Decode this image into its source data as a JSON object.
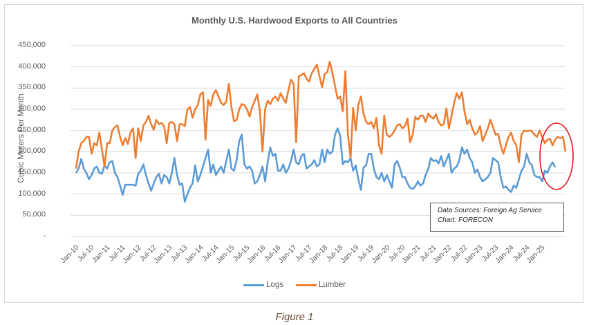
{
  "figure_caption": "Figure 1",
  "chart_data": {
    "type": "line",
    "title": "Monthly U.S. Hardwood Exports to All Countries",
    "xlabel": "",
    "ylabel": "Cubic Meters Per Month",
    "ylim": [
      0,
      450000
    ],
    "yticks": [
      0,
      50000,
      100000,
      150000,
      200000,
      250000,
      300000,
      350000,
      400000,
      450000
    ],
    "ytick_labels": [
      "-",
      "50,000",
      "100,000",
      "150,000",
      "200,000",
      "250,000",
      "300,000",
      "350,000",
      "400,000",
      "450,000"
    ],
    "grid": true,
    "legend_position": "bottom",
    "x_start": "Jan-10",
    "x_end": "Apr-25",
    "frequency": "monthly",
    "xtick_labels": [
      "Jan-10",
      "Jul-10",
      "Jan-11",
      "Jul-11",
      "Jan-12",
      "Jul-12",
      "Jan-13",
      "Jul-13",
      "Jan-14",
      "Jul-14",
      "Jan-15",
      "Jul-15",
      "Jan-16",
      "Jul-16",
      "Jan-17",
      "Jul-17",
      "Jan-18",
      "Jul-18",
      "Jan-19",
      "Jul-19",
      "Jan-20",
      "Jul-20",
      "Jan-21",
      "Jul-21",
      "Jan-22",
      "Jul-22",
      "Jan-23",
      "Jul-23",
      "Jan-24",
      "Jul-24",
      "Jan-25"
    ],
    "annotation": {
      "text_lines": [
        "Data Sources: Foreign Ag Service",
        "Chart: FORECON"
      ],
      "highlight": "red ellipse around most recent months (2025)"
    },
    "series": [
      {
        "name": "Logs",
        "color": "#5b9bd5",
        "values": [
          150000,
          160000,
          183000,
          160000,
          150000,
          135000,
          145000,
          160000,
          165000,
          150000,
          148000,
          168000,
          160000,
          175000,
          178000,
          150000,
          140000,
          120000,
          98000,
          122000,
          122000,
          122000,
          122000,
          120000,
          148000,
          155000,
          170000,
          145000,
          125000,
          108000,
          125000,
          140000,
          148000,
          125000,
          145000,
          140000,
          125000,
          150000,
          185000,
          145000,
          122000,
          125000,
          82000,
          100000,
          115000,
          125000,
          168000,
          130000,
          145000,
          165000,
          185000,
          205000,
          150000,
          170000,
          145000,
          155000,
          165000,
          150000,
          178000,
          205000,
          160000,
          155000,
          180000,
          225000,
          240000,
          170000,
          160000,
          165000,
          155000,
          125000,
          130000,
          145000,
          165000,
          130000,
          175000,
          210000,
          190000,
          195000,
          155000,
          155000,
          170000,
          150000,
          160000,
          178000,
          205000,
          175000,
          170000,
          190000,
          195000,
          160000,
          165000,
          170000,
          180000,
          165000,
          170000,
          205000,
          175000,
          205000,
          195000,
          200000,
          240000,
          255000,
          238000,
          170000,
          178000,
          175000,
          185000,
          155000,
          168000,
          135000,
          110000,
          162000,
          168000,
          195000,
          195000,
          160000,
          140000,
          135000,
          150000,
          130000,
          145000,
          130000,
          115000,
          170000,
          178000,
          162000,
          140000,
          140000,
          125000,
          115000,
          112000,
          118000,
          130000,
          120000,
          125000,
          145000,
          160000,
          185000,
          178000,
          180000,
          172000,
          190000,
          165000,
          180000,
          195000,
          150000,
          160000,
          165000,
          180000,
          210000,
          195000,
          205000,
          185000,
          175000,
          150000,
          158000,
          140000,
          130000,
          135000,
          140000,
          150000,
          185000,
          180000,
          175000,
          140000,
          115000,
          118000,
          110000,
          105000,
          120000,
          115000,
          135000,
          155000,
          165000,
          195000,
          175000,
          168000,
          145000,
          140000,
          140000,
          130000,
          155000,
          150000,
          165000,
          175000,
          163000
        ]
      },
      {
        "name": "Lumber",
        "color": "#ed7d31",
        "values": [
          160000,
          200000,
          220000,
          225000,
          235000,
          235000,
          195000,
          220000,
          215000,
          245000,
          205000,
          165000,
          220000,
          220000,
          250000,
          258000,
          262000,
          235000,
          215000,
          232000,
          218000,
          245000,
          255000,
          185000,
          255000,
          225000,
          262000,
          270000,
          285000,
          265000,
          252000,
          275000,
          265000,
          268000,
          260000,
          220000,
          268000,
          270000,
          265000,
          225000,
          265000,
          265000,
          260000,
          300000,
          305000,
          280000,
          300000,
          310000,
          335000,
          340000,
          228000,
          322000,
          308000,
          335000,
          345000,
          330000,
          315000,
          310000,
          318000,
          360000,
          305000,
          272000,
          275000,
          300000,
          312000,
          310000,
          300000,
          283000,
          305000,
          320000,
          335000,
          295000,
          200000,
          300000,
          320000,
          312000,
          325000,
          330000,
          320000,
          338000,
          325000,
          315000,
          345000,
          370000,
          360000,
          222000,
          378000,
          380000,
          385000,
          372000,
          365000,
          385000,
          395000,
          405000,
          378000,
          352000,
          383000,
          388000,
          412000,
          385000,
          355000,
          325000,
          330000,
          295000,
          390000,
          240000,
          185000,
          303000,
          250000,
          310000,
          330000,
          290000,
          270000,
          265000,
          270000,
          255000,
          280000,
          215000,
          195000,
          285000,
          240000,
          235000,
          240000,
          250000,
          262000,
          265000,
          255000,
          260000,
          278000,
          222000,
          240000,
          282000,
          275000,
          285000,
          285000,
          270000,
          290000,
          282000,
          278000,
          288000,
          270000,
          262000,
          265000,
          302000,
          255000,
          285000,
          315000,
          338000,
          325000,
          340000,
          295000,
          265000,
          275000,
          255000,
          240000,
          245000,
          260000,
          225000,
          240000,
          255000,
          275000,
          258000,
          240000,
          242000,
          215000,
          195000,
          215000,
          235000,
          245000,
          225000,
          215000,
          175000,
          240000,
          250000,
          248000,
          250000,
          248000,
          240000,
          235000,
          250000,
          235000,
          220000,
          228000,
          230000,
          215000,
          228000,
          235000,
          232000,
          235000,
          200000
        ]
      }
    ]
  }
}
